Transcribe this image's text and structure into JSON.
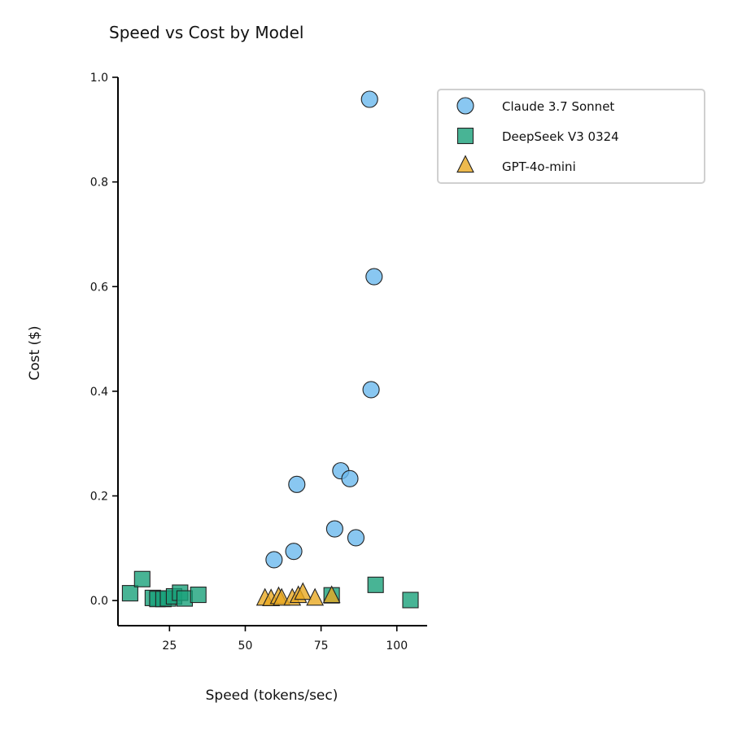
{
  "chart_data": {
    "type": "scatter",
    "title": "Speed vs Cost by Model",
    "xlabel": "Speed (tokens/sec)",
    "ylabel": "Cost ($)",
    "xlim": [
      8,
      110
    ],
    "ylim": [
      -0.048,
      1.0
    ],
    "xticks": [
      25,
      50,
      75,
      100
    ],
    "yticks": [
      0.0,
      0.2,
      0.4,
      0.6,
      0.8,
      1.0
    ],
    "ytick_labels": [
      "0.0",
      "0.2",
      "0.4",
      "0.6",
      "0.8",
      "1.0"
    ],
    "grid": false,
    "legend_position": "outside-top-right",
    "series": [
      {
        "name": "Claude 3.7 Sonnet",
        "marker": "circle",
        "color": "#6CB9EE",
        "points": [
          {
            "x": 91.0,
            "y": 0.958
          },
          {
            "x": 92.5,
            "y": 0.619
          },
          {
            "x": 91.5,
            "y": 0.403
          },
          {
            "x": 81.5,
            "y": 0.248
          },
          {
            "x": 84.5,
            "y": 0.233
          },
          {
            "x": 67.0,
            "y": 0.222
          },
          {
            "x": 79.5,
            "y": 0.137
          },
          {
            "x": 86.5,
            "y": 0.12
          },
          {
            "x": 66.0,
            "y": 0.094
          },
          {
            "x": 59.5,
            "y": 0.078
          }
        ]
      },
      {
        "name": "DeepSeek V3 0324",
        "marker": "square",
        "color": "#1AA17A",
        "points": [
          {
            "x": 12.0,
            "y": 0.014
          },
          {
            "x": 16.0,
            "y": 0.041
          },
          {
            "x": 19.5,
            "y": 0.005
          },
          {
            "x": 21.0,
            "y": 0.003
          },
          {
            "x": 23.0,
            "y": 0.003
          },
          {
            "x": 24.5,
            "y": 0.004
          },
          {
            "x": 26.5,
            "y": 0.008
          },
          {
            "x": 28.5,
            "y": 0.015
          },
          {
            "x": 30.0,
            "y": 0.004
          },
          {
            "x": 34.5,
            "y": 0.011
          },
          {
            "x": 78.5,
            "y": 0.01
          },
          {
            "x": 93.0,
            "y": 0.03
          },
          {
            "x": 104.5,
            "y": 0.001
          }
        ]
      },
      {
        "name": "GPT-4o-mini",
        "marker": "triangle",
        "color": "#E8A922",
        "points": [
          {
            "x": 56.5,
            "y": 0.003
          },
          {
            "x": 58.5,
            "y": 0.002
          },
          {
            "x": 61.0,
            "y": 0.006
          },
          {
            "x": 62.0,
            "y": 0.003
          },
          {
            "x": 65.5,
            "y": 0.003
          },
          {
            "x": 67.5,
            "y": 0.008
          },
          {
            "x": 69.0,
            "y": 0.014
          },
          {
            "x": 73.0,
            "y": 0.003
          },
          {
            "x": 78.5,
            "y": 0.008
          }
        ]
      }
    ]
  }
}
